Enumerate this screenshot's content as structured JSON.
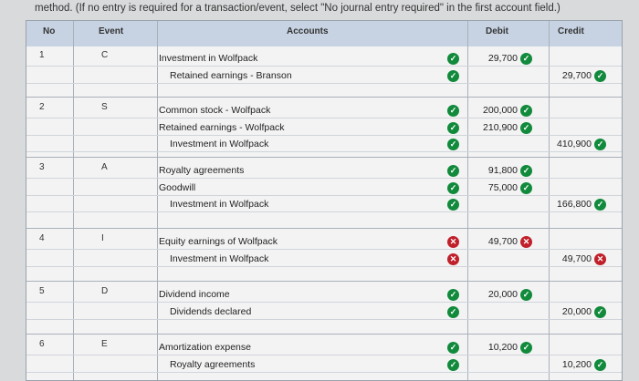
{
  "instruction": "method. (If no entry is required for a transaction/event, select \"No journal entry required\" in the first account field.)",
  "headers": {
    "no": "No",
    "event": "Event",
    "accounts": "Accounts",
    "debit": "Debit",
    "credit": "Credit"
  },
  "rows": [
    {
      "no": "1",
      "event": "C",
      "lines": [
        {
          "account": "Investment in Wolfpack",
          "indent": false,
          "status": "correct",
          "debit": "29,700",
          "debit_status": "correct",
          "credit": "",
          "credit_status": ""
        },
        {
          "account": "Retained earnings - Branson",
          "indent": true,
          "status": "correct",
          "debit": "",
          "debit_status": "",
          "credit": "29,700",
          "credit_status": "correct"
        }
      ]
    },
    {
      "no": "2",
      "event": "S",
      "lines": [
        {
          "account": "Common stock - Wolfpack",
          "indent": false,
          "status": "correct",
          "debit": "200,000",
          "debit_status": "correct",
          "credit": "",
          "credit_status": ""
        },
        {
          "account": "Retained earnings - Wolfpack",
          "indent": false,
          "status": "correct",
          "debit": "210,900",
          "debit_status": "correct",
          "credit": "",
          "credit_status": ""
        },
        {
          "account": "Investment in Wolfpack",
          "indent": true,
          "status": "correct",
          "debit": "",
          "debit_status": "",
          "credit": "410,900",
          "credit_status": "correct"
        }
      ]
    },
    {
      "no": "3",
      "event": "A",
      "lines": [
        {
          "account": "Royalty agreements",
          "indent": false,
          "status": "correct",
          "debit": "91,800",
          "debit_status": "correct",
          "credit": "",
          "credit_status": ""
        },
        {
          "account": "Goodwill",
          "indent": false,
          "status": "correct",
          "debit": "75,000",
          "debit_status": "correct",
          "credit": "",
          "credit_status": ""
        },
        {
          "account": "Investment in Wolfpack",
          "indent": true,
          "status": "correct",
          "debit": "",
          "debit_status": "",
          "credit": "166,800",
          "credit_status": "correct"
        }
      ]
    },
    {
      "no": "4",
      "event": "I",
      "lines": [
        {
          "account": "Equity earnings of Wolfpack",
          "indent": false,
          "status": "incorrect",
          "debit": "49,700",
          "debit_status": "incorrect",
          "credit": "",
          "credit_status": ""
        },
        {
          "account": "Investment in Wolfpack",
          "indent": true,
          "status": "incorrect",
          "debit": "",
          "debit_status": "",
          "credit": "49,700",
          "credit_status": "incorrect"
        }
      ]
    },
    {
      "no": "5",
      "event": "D",
      "lines": [
        {
          "account": "Dividend income",
          "indent": false,
          "status": "correct",
          "debit": "20,000",
          "debit_status": "correct",
          "credit": "",
          "credit_status": ""
        },
        {
          "account": "Dividends declared",
          "indent": true,
          "status": "correct",
          "debit": "",
          "debit_status": "",
          "credit": "20,000",
          "credit_status": "correct"
        }
      ]
    },
    {
      "no": "6",
      "event": "E",
      "lines": [
        {
          "account": "Amortization expense",
          "indent": false,
          "status": "correct",
          "debit": "10,200",
          "debit_status": "correct",
          "credit": "",
          "credit_status": ""
        },
        {
          "account": "Royalty agreements",
          "indent": true,
          "status": "correct",
          "debit": "",
          "debit_status": "",
          "credit": "10,200",
          "credit_status": "correct"
        }
      ]
    }
  ],
  "icons": {
    "correct": "check-circle-icon",
    "incorrect": "x-circle-icon"
  },
  "colors": {
    "header_bg": "#c7d3e3",
    "correct": "#118a3c",
    "incorrect": "#c0202a"
  }
}
